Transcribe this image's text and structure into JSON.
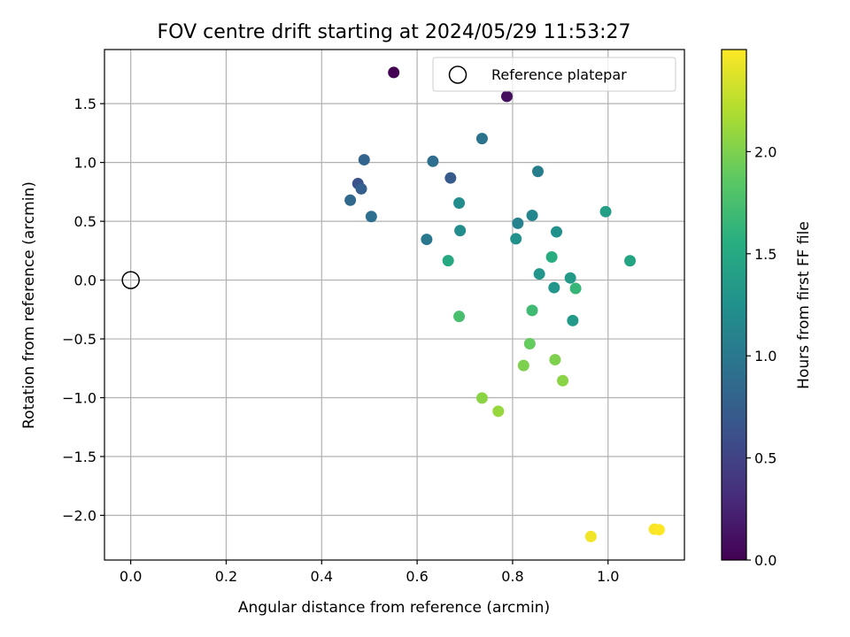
{
  "chart_data": {
    "type": "scatter",
    "title": "FOV centre drift starting at 2024/05/29 11:53:27",
    "xlabel": "Angular distance from reference (arcmin)",
    "ylabel": "Rotation from reference (arcmin)",
    "xlim": [
      -0.055,
      1.16
    ],
    "ylim": [
      -2.38,
      1.96
    ],
    "xticks": [
      0.0,
      0.2,
      0.4,
      0.6,
      0.8,
      1.0
    ],
    "xtick_labels": [
      "0.0",
      "0.2",
      "0.4",
      "0.6",
      "0.8",
      "1.0"
    ],
    "yticks": [
      -2.0,
      -1.5,
      -1.0,
      -0.5,
      0.0,
      0.5,
      1.0,
      1.5
    ],
    "ytick_labels": [
      "−2.0",
      "−1.5",
      "−1.0",
      "−0.5",
      "0.0",
      "0.5",
      "1.0",
      "1.5"
    ],
    "grid": true,
    "legend": {
      "position": "top-right",
      "entries": [
        "Reference platepar"
      ]
    },
    "reference_point": {
      "x": 0.0,
      "y": 0.0
    },
    "colorbar": {
      "label": "Hours from first FF file",
      "colormap": "viridis",
      "range": [
        0.0,
        2.5
      ],
      "ticks": [
        0.0,
        0.5,
        1.0,
        1.5,
        2.0
      ],
      "tick_labels": [
        "0.0",
        "0.5",
        "1.0",
        "1.5",
        "2.0"
      ]
    },
    "points": [
      {
        "x": 0.551,
        "y": 1.765,
        "hours": 0.0
      },
      {
        "x": 0.788,
        "y": 1.562,
        "hours": 0.1
      },
      {
        "x": 0.476,
        "y": 0.82,
        "hours": 0.62
      },
      {
        "x": 0.67,
        "y": 0.868,
        "hours": 0.7
      },
      {
        "x": 0.483,
        "y": 0.776,
        "hours": 0.75
      },
      {
        "x": 0.489,
        "y": 1.023,
        "hours": 0.8
      },
      {
        "x": 0.46,
        "y": 0.679,
        "hours": 0.85
      },
      {
        "x": 0.504,
        "y": 0.54,
        "hours": 0.9
      },
      {
        "x": 0.633,
        "y": 1.01,
        "hours": 0.9
      },
      {
        "x": 0.736,
        "y": 1.203,
        "hours": 0.95
      },
      {
        "x": 0.62,
        "y": 0.346,
        "hours": 1.0
      },
      {
        "x": 0.853,
        "y": 0.924,
        "hours": 1.05
      },
      {
        "x": 0.811,
        "y": 0.483,
        "hours": 1.1
      },
      {
        "x": 0.841,
        "y": 0.55,
        "hours": 1.15
      },
      {
        "x": 0.688,
        "y": 0.655,
        "hours": 1.2
      },
      {
        "x": 0.69,
        "y": 0.421,
        "hours": 1.2
      },
      {
        "x": 0.807,
        "y": 0.351,
        "hours": 1.25
      },
      {
        "x": 0.892,
        "y": 0.41,
        "hours": 1.25
      },
      {
        "x": 0.856,
        "y": 0.052,
        "hours": 1.3
      },
      {
        "x": 0.887,
        "y": -0.064,
        "hours": 1.3
      },
      {
        "x": 0.921,
        "y": 0.018,
        "hours": 1.35
      },
      {
        "x": 0.926,
        "y": -0.344,
        "hours": 1.35
      },
      {
        "x": 0.995,
        "y": 0.582,
        "hours": 1.4
      },
      {
        "x": 1.046,
        "y": 0.164,
        "hours": 1.45
      },
      {
        "x": 0.665,
        "y": 0.165,
        "hours": 1.5
      },
      {
        "x": 0.882,
        "y": 0.196,
        "hours": 1.55
      },
      {
        "x": 0.932,
        "y": -0.071,
        "hours": 1.65
      },
      {
        "x": 0.841,
        "y": -0.258,
        "hours": 1.7
      },
      {
        "x": 0.688,
        "y": -0.309,
        "hours": 1.75
      },
      {
        "x": 0.836,
        "y": -0.541,
        "hours": 1.9
      },
      {
        "x": 0.823,
        "y": -0.726,
        "hours": 2.0
      },
      {
        "x": 0.889,
        "y": -0.677,
        "hours": 2.0
      },
      {
        "x": 0.905,
        "y": -0.855,
        "hours": 2.05
      },
      {
        "x": 0.736,
        "y": -1.003,
        "hours": 2.05
      },
      {
        "x": 0.77,
        "y": -1.115,
        "hours": 2.1
      },
      {
        "x": 0.964,
        "y": -2.18,
        "hours": 2.45
      },
      {
        "x": 1.097,
        "y": -2.118,
        "hours": 2.48
      },
      {
        "x": 1.107,
        "y": -2.122,
        "hours": 2.5
      }
    ]
  }
}
